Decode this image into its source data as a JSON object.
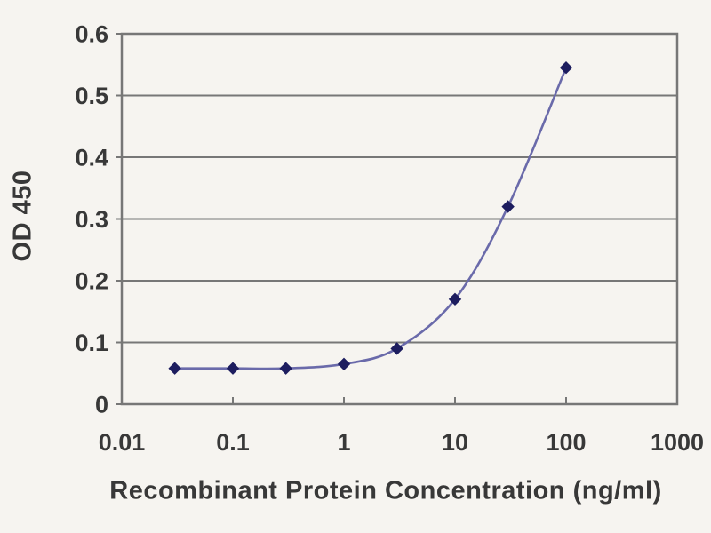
{
  "chart_data": {
    "type": "line",
    "title": "",
    "xlabel": "Recombinant Protein Concentration (ng/ml)",
    "ylabel": "OD 450",
    "x_scale": "log",
    "xlim": [
      0.01,
      1000
    ],
    "ylim": [
      0,
      0.6
    ],
    "x_ticks": [
      "0.01",
      "0.1",
      "1",
      "10",
      "100",
      "1000"
    ],
    "x_tick_values": [
      0.01,
      0.1,
      1,
      10,
      100,
      1000
    ],
    "y_ticks": [
      "0",
      "0.1",
      "0.2",
      "0.3",
      "0.4",
      "0.5",
      "0.6"
    ],
    "y_tick_values": [
      0,
      0.1,
      0.2,
      0.3,
      0.4,
      0.5,
      0.6
    ],
    "x": [
      0.03,
      0.1,
      0.3,
      1,
      3,
      10,
      30,
      100
    ],
    "series": [
      {
        "name": "OD 450",
        "marker": "diamond",
        "values": [
          0.058,
          0.058,
          0.058,
          0.065,
          0.09,
          0.17,
          0.32,
          0.545
        ]
      }
    ],
    "grid": "horizontal",
    "legend": "none",
    "colors": {
      "line": "#6a6aaa",
      "marker": "#1d1d5f",
      "grid": "#777777",
      "frame": "#777777",
      "text": "#383838",
      "background": "#f6f4f0"
    }
  }
}
